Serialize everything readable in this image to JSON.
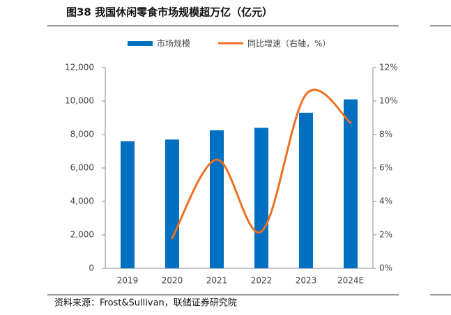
{
  "chart_data": {
    "type": "bar-line",
    "title": "图38 我国休闲零食市场规模超万亿（亿元）",
    "source": "资料来源：Frost&Sullivan，联储证券研究院",
    "categories": [
      "2019",
      "2020",
      "2021",
      "2022",
      "2023",
      "2024E"
    ],
    "series": [
      {
        "name": "市场规模",
        "type": "bar",
        "color": "#0070c0",
        "values": [
          7600,
          7700,
          8250,
          8400,
          9300,
          10100
        ]
      },
      {
        "name": "同比增速（右轴，%）",
        "type": "line",
        "axis": "y2",
        "color": "#f07020",
        "values": [
          null,
          1.8,
          6.5,
          2.2,
          10.4,
          8.7
        ]
      }
    ],
    "ylim": [
      0,
      12000
    ],
    "yticks": [
      0,
      {
        "value": 2000,
        "label": "2,000"
      },
      {
        "value": 4000,
        "label": "4,000"
      },
      {
        "value": 6000,
        "label": "6,000"
      },
      {
        "value": 8000,
        "label": "8,000"
      },
      {
        "value": 10000,
        "label": "10,000"
      },
      {
        "value": 12000,
        "label": "12,000"
      }
    ],
    "y2lim": [
      0,
      12
    ],
    "y2ticks": [
      {
        "value": 0,
        "label": "0%"
      },
      {
        "value": 2,
        "label": "2%"
      },
      {
        "value": 4,
        "label": "4%"
      },
      {
        "value": 6,
        "label": "6%"
      },
      {
        "value": 8,
        "label": "8%"
      },
      {
        "value": 10,
        "label": "10%"
      },
      {
        "value": 12,
        "label": "12%"
      }
    ]
  }
}
